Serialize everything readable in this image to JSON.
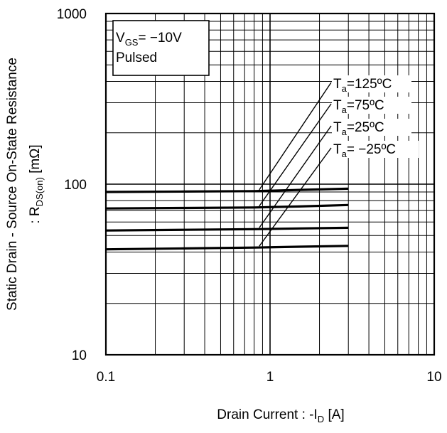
{
  "chart_data": {
    "type": "line",
    "xscale": "log",
    "yscale": "log",
    "xlim": [
      0.1,
      10
    ],
    "ylim": [
      10,
      1000
    ],
    "grid": true,
    "x_ticks": [
      {
        "value": 0.1,
        "label": "0.1"
      },
      {
        "value": 1,
        "label": "1"
      },
      {
        "value": 10,
        "label": "10"
      }
    ],
    "y_ticks": [
      {
        "value": 10,
        "label": "10"
      },
      {
        "value": 100,
        "label": "100"
      },
      {
        "value": 1000,
        "label": "1000"
      }
    ],
    "xlabel": {
      "main": "Drain Current : -I",
      "sub": "D",
      "tail": " [A]"
    },
    "ylabel": {
      "line1": "Static Drain - Source On-State Resistance",
      "line2_main": ": R",
      "line2_sub": "DS(on)",
      "line2_tail": " [mΩ]"
    },
    "legend": {
      "line1_main": "V",
      "line1_sub": "GS",
      "line1_tail": "= −10V",
      "line2": "Pulsed",
      "placement": "top-left"
    },
    "series": [
      {
        "label_main": "T",
        "label_sub": "a",
        "label_tail": "=125ºC",
        "x": [
          0.1,
          0.3,
          0.8,
          1.5,
          3.0
        ],
        "y": [
          90,
          90.5,
          91,
          92.5,
          94
        ]
      },
      {
        "label_main": "T",
        "label_sub": "a",
        "label_tail": "=75ºC",
        "x": [
          0.1,
          0.3,
          0.8,
          1.5,
          3.0
        ],
        "y": [
          72,
          72.5,
          73,
          74,
          75.5
        ]
      },
      {
        "label_main": "T",
        "label_sub": "a",
        "label_tail": "=25ºC",
        "x": [
          0.1,
          0.3,
          0.8,
          1.5,
          3.0
        ],
        "y": [
          53.5,
          54,
          54.5,
          55,
          55.5
        ]
      },
      {
        "label_main": "T",
        "label_sub": "a",
        "label_tail": "= −25ºC",
        "x": [
          0.1,
          0.3,
          0.8,
          1.5,
          3.0
        ],
        "y": [
          41.5,
          42,
          42.5,
          43,
          43.5
        ]
      }
    ],
    "series_color": "#000000",
    "grid_color": "#000000"
  }
}
